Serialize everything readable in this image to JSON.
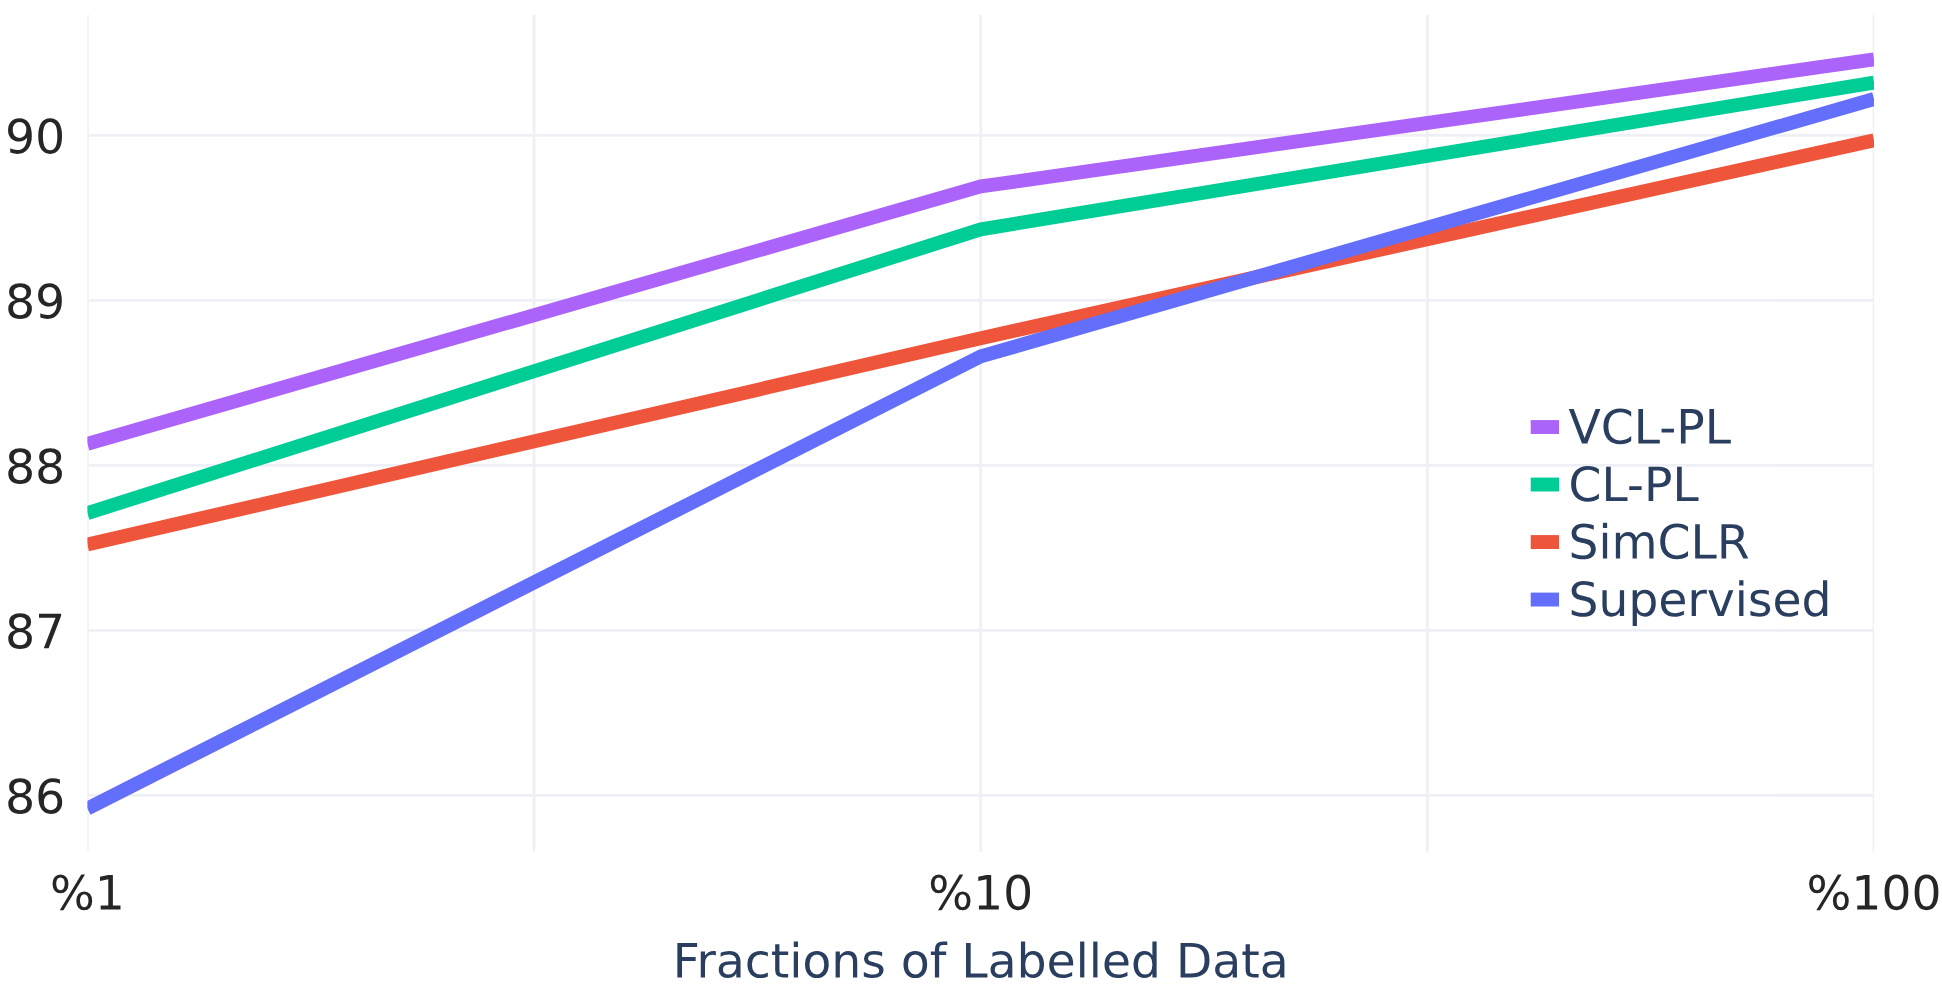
{
  "chart_data": {
    "type": "line",
    "xlabel": "Fractions of Labelled Data",
    "x": [
      1,
      10,
      100
    ],
    "series": [
      {
        "name": "VCL-PL",
        "color": "#ab63fa",
        "values": [
          88.13,
          89.69,
          90.46
        ]
      },
      {
        "name": "CL-PL",
        "color": "#00cc96",
        "values": [
          87.71,
          89.43,
          90.32
        ]
      },
      {
        "name": "SimCLR",
        "color": "#ef553b",
        "values": [
          87.52,
          88.77,
          89.97
        ]
      },
      {
        "name": "Supervised",
        "color": "#636efa",
        "values": [
          85.92,
          88.66,
          90.22
        ]
      }
    ],
    "log": "x",
    "xlim": [
      1,
      100
    ],
    "xticks": [
      {
        "value": 1,
        "label": "%1"
      },
      {
        "value": 3.162,
        "label": null
      },
      {
        "value": 10,
        "label": "%10"
      },
      {
        "value": 31.62,
        "label": null
      },
      {
        "value": 100,
        "label": "%100"
      }
    ],
    "ylim": [
      85.66,
      90.73
    ],
    "yticks": [
      86,
      87,
      88,
      89,
      90
    ],
    "grid": true,
    "legend": "right",
    "marker": "none",
    "line_style": "solid"
  }
}
